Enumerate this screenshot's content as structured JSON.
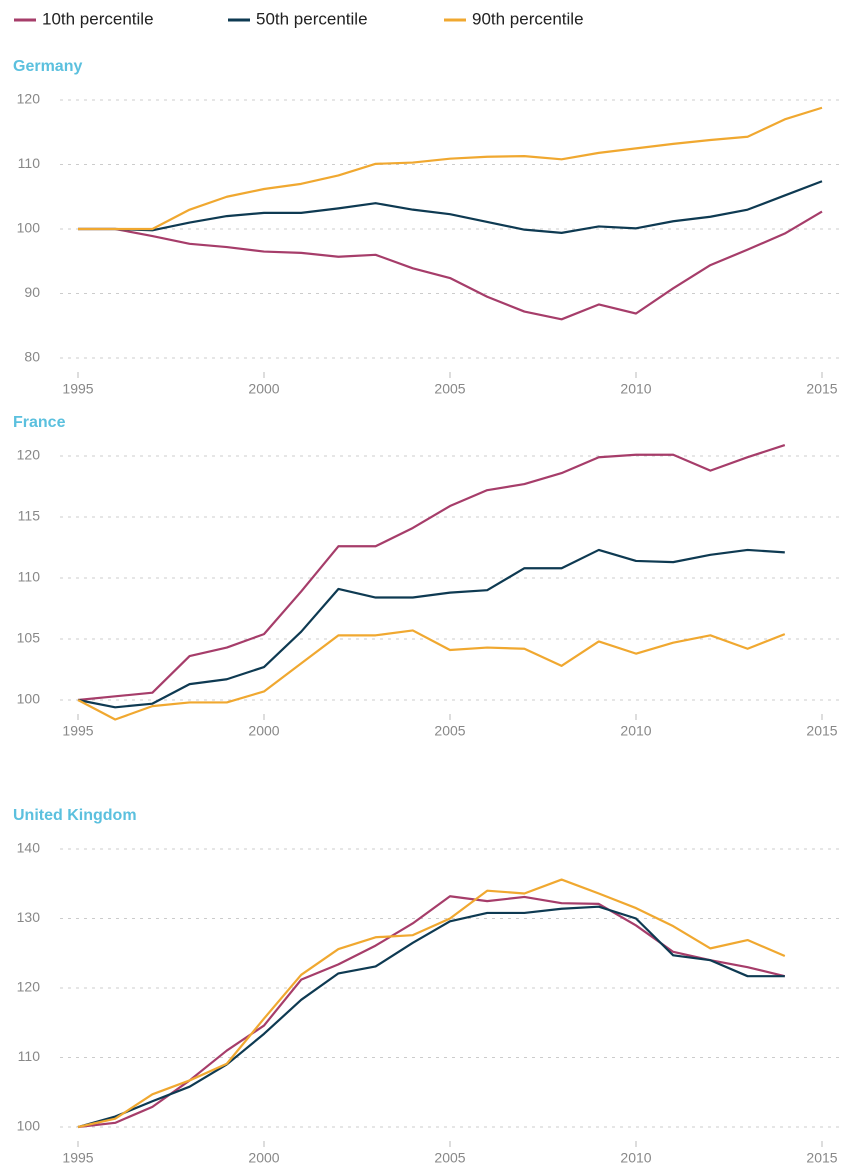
{
  "chart_data": [
    {
      "type": "line",
      "title": "Germany",
      "x": [
        1995,
        1996,
        1997,
        1998,
        1999,
        2000,
        2001,
        2002,
        2003,
        2004,
        2005,
        2006,
        2007,
        2008,
        2009,
        2010,
        2011,
        2012,
        2013,
        2014,
        2015
      ],
      "series": [
        {
          "name": "10th percentile",
          "color": "#a63d6a",
          "values": [
            100,
            100,
            98.9,
            97.7,
            97.2,
            96.5,
            96.3,
            95.7,
            96.0,
            93.9,
            92.4,
            89.5,
            87.2,
            86.0,
            88.3,
            86.9,
            90.8,
            94.4,
            96.8,
            99.3,
            102.7
          ]
        },
        {
          "name": "50th percentile",
          "color": "#0e3a52",
          "values": [
            100,
            100,
            99.8,
            101,
            102,
            102.5,
            102.5,
            103.2,
            104,
            103,
            102.3,
            101.1,
            99.9,
            99.4,
            100.4,
            100.1,
            101.2,
            101.9,
            103,
            105.2,
            107.4
          ]
        },
        {
          "name": "90th percentile",
          "color": "#f0a830",
          "values": [
            100,
            100,
            100,
            103,
            105,
            106.2,
            107,
            108.3,
            110.1,
            110.3,
            110.9,
            111.2,
            111.3,
            110.8,
            111.8,
            112.5,
            113.2,
            113.8,
            114.3,
            117,
            118.8
          ]
        }
      ],
      "xlim": [
        1995,
        2015
      ],
      "xticks": [
        1995,
        2000,
        2005,
        2010,
        2015
      ],
      "ylim": [
        80,
        120
      ],
      "yticks": [
        80,
        90,
        100,
        110,
        120
      ],
      "grid": true
    },
    {
      "type": "line",
      "title": "France",
      "x": [
        1995,
        1996,
        1997,
        1998,
        1999,
        2000,
        2001,
        2002,
        2003,
        2004,
        2005,
        2006,
        2007,
        2008,
        2009,
        2010,
        2011,
        2012,
        2013,
        2014
      ],
      "series": [
        {
          "name": "10th percentile",
          "color": "#a63d6a",
          "values": [
            100,
            100.3,
            100.6,
            103.6,
            104.3,
            105.4,
            108.9,
            112.6,
            112.6,
            114.1,
            115.9,
            117.2,
            117.7,
            118.6,
            119.9,
            120.1,
            120.1,
            118.8,
            119.9,
            120.9
          ]
        },
        {
          "name": "50th percentile",
          "color": "#0e3a52",
          "values": [
            100,
            99.4,
            99.7,
            101.3,
            101.7,
            102.7,
            105.6,
            109.1,
            108.4,
            108.4,
            108.8,
            109.0,
            110.8,
            110.8,
            112.3,
            111.4,
            111.3,
            111.9,
            112.3,
            112.1
          ]
        },
        {
          "name": "90th percentile",
          "color": "#f0a830",
          "values": [
            100,
            98.4,
            99.5,
            99.8,
            99.8,
            100.7,
            103.0,
            105.3,
            105.3,
            105.7,
            104.1,
            104.3,
            104.2,
            102.8,
            104.8,
            103.8,
            104.7,
            105.3,
            104.2,
            105.4
          ]
        }
      ],
      "xlim": [
        1995,
        2015
      ],
      "xticks": [
        1995,
        2000,
        2005,
        2010,
        2015
      ],
      "ylim": [
        100,
        120
      ],
      "yticks": [
        100,
        105,
        110,
        115,
        120
      ],
      "grid": true
    },
    {
      "type": "line",
      "title": "United Kingdom",
      "x": [
        1995,
        1996,
        1997,
        1998,
        1999,
        2000,
        2001,
        2002,
        2003,
        2004,
        2005,
        2006,
        2007,
        2008,
        2009,
        2010,
        2011,
        2012,
        2013,
        2014
      ],
      "series": [
        {
          "name": "10th percentile",
          "color": "#a63d6a",
          "values": [
            100,
            100.6,
            102.9,
            106.7,
            111,
            114.6,
            121.2,
            123.4,
            126.1,
            129.3,
            133.2,
            132.5,
            133.1,
            132.2,
            132.1,
            129,
            125.2,
            124,
            123,
            121.7
          ]
        },
        {
          "name": "50th percentile",
          "color": "#0e3a52",
          "values": [
            100,
            101.5,
            103.7,
            105.8,
            109,
            113.4,
            118.3,
            122.1,
            123.1,
            126.5,
            129.6,
            130.8,
            130.8,
            131.4,
            131.7,
            130,
            124.7,
            124,
            121.7,
            121.7
          ]
        },
        {
          "name": "90th percentile",
          "color": "#f0a830",
          "values": [
            100,
            101.2,
            104.7,
            106.7,
            109.1,
            115.6,
            121.9,
            125.6,
            127.3,
            127.6,
            130,
            134,
            133.6,
            135.6,
            133.6,
            131.5,
            128.9,
            125.7,
            126.9,
            124.6
          ]
        }
      ],
      "xlim": [
        1995,
        2015
      ],
      "xticks": [
        1995,
        2000,
        2005,
        2010,
        2015
      ],
      "ylim": [
        100,
        140
      ],
      "yticks": [
        100,
        110,
        120,
        130,
        140
      ],
      "grid": true
    }
  ]
}
